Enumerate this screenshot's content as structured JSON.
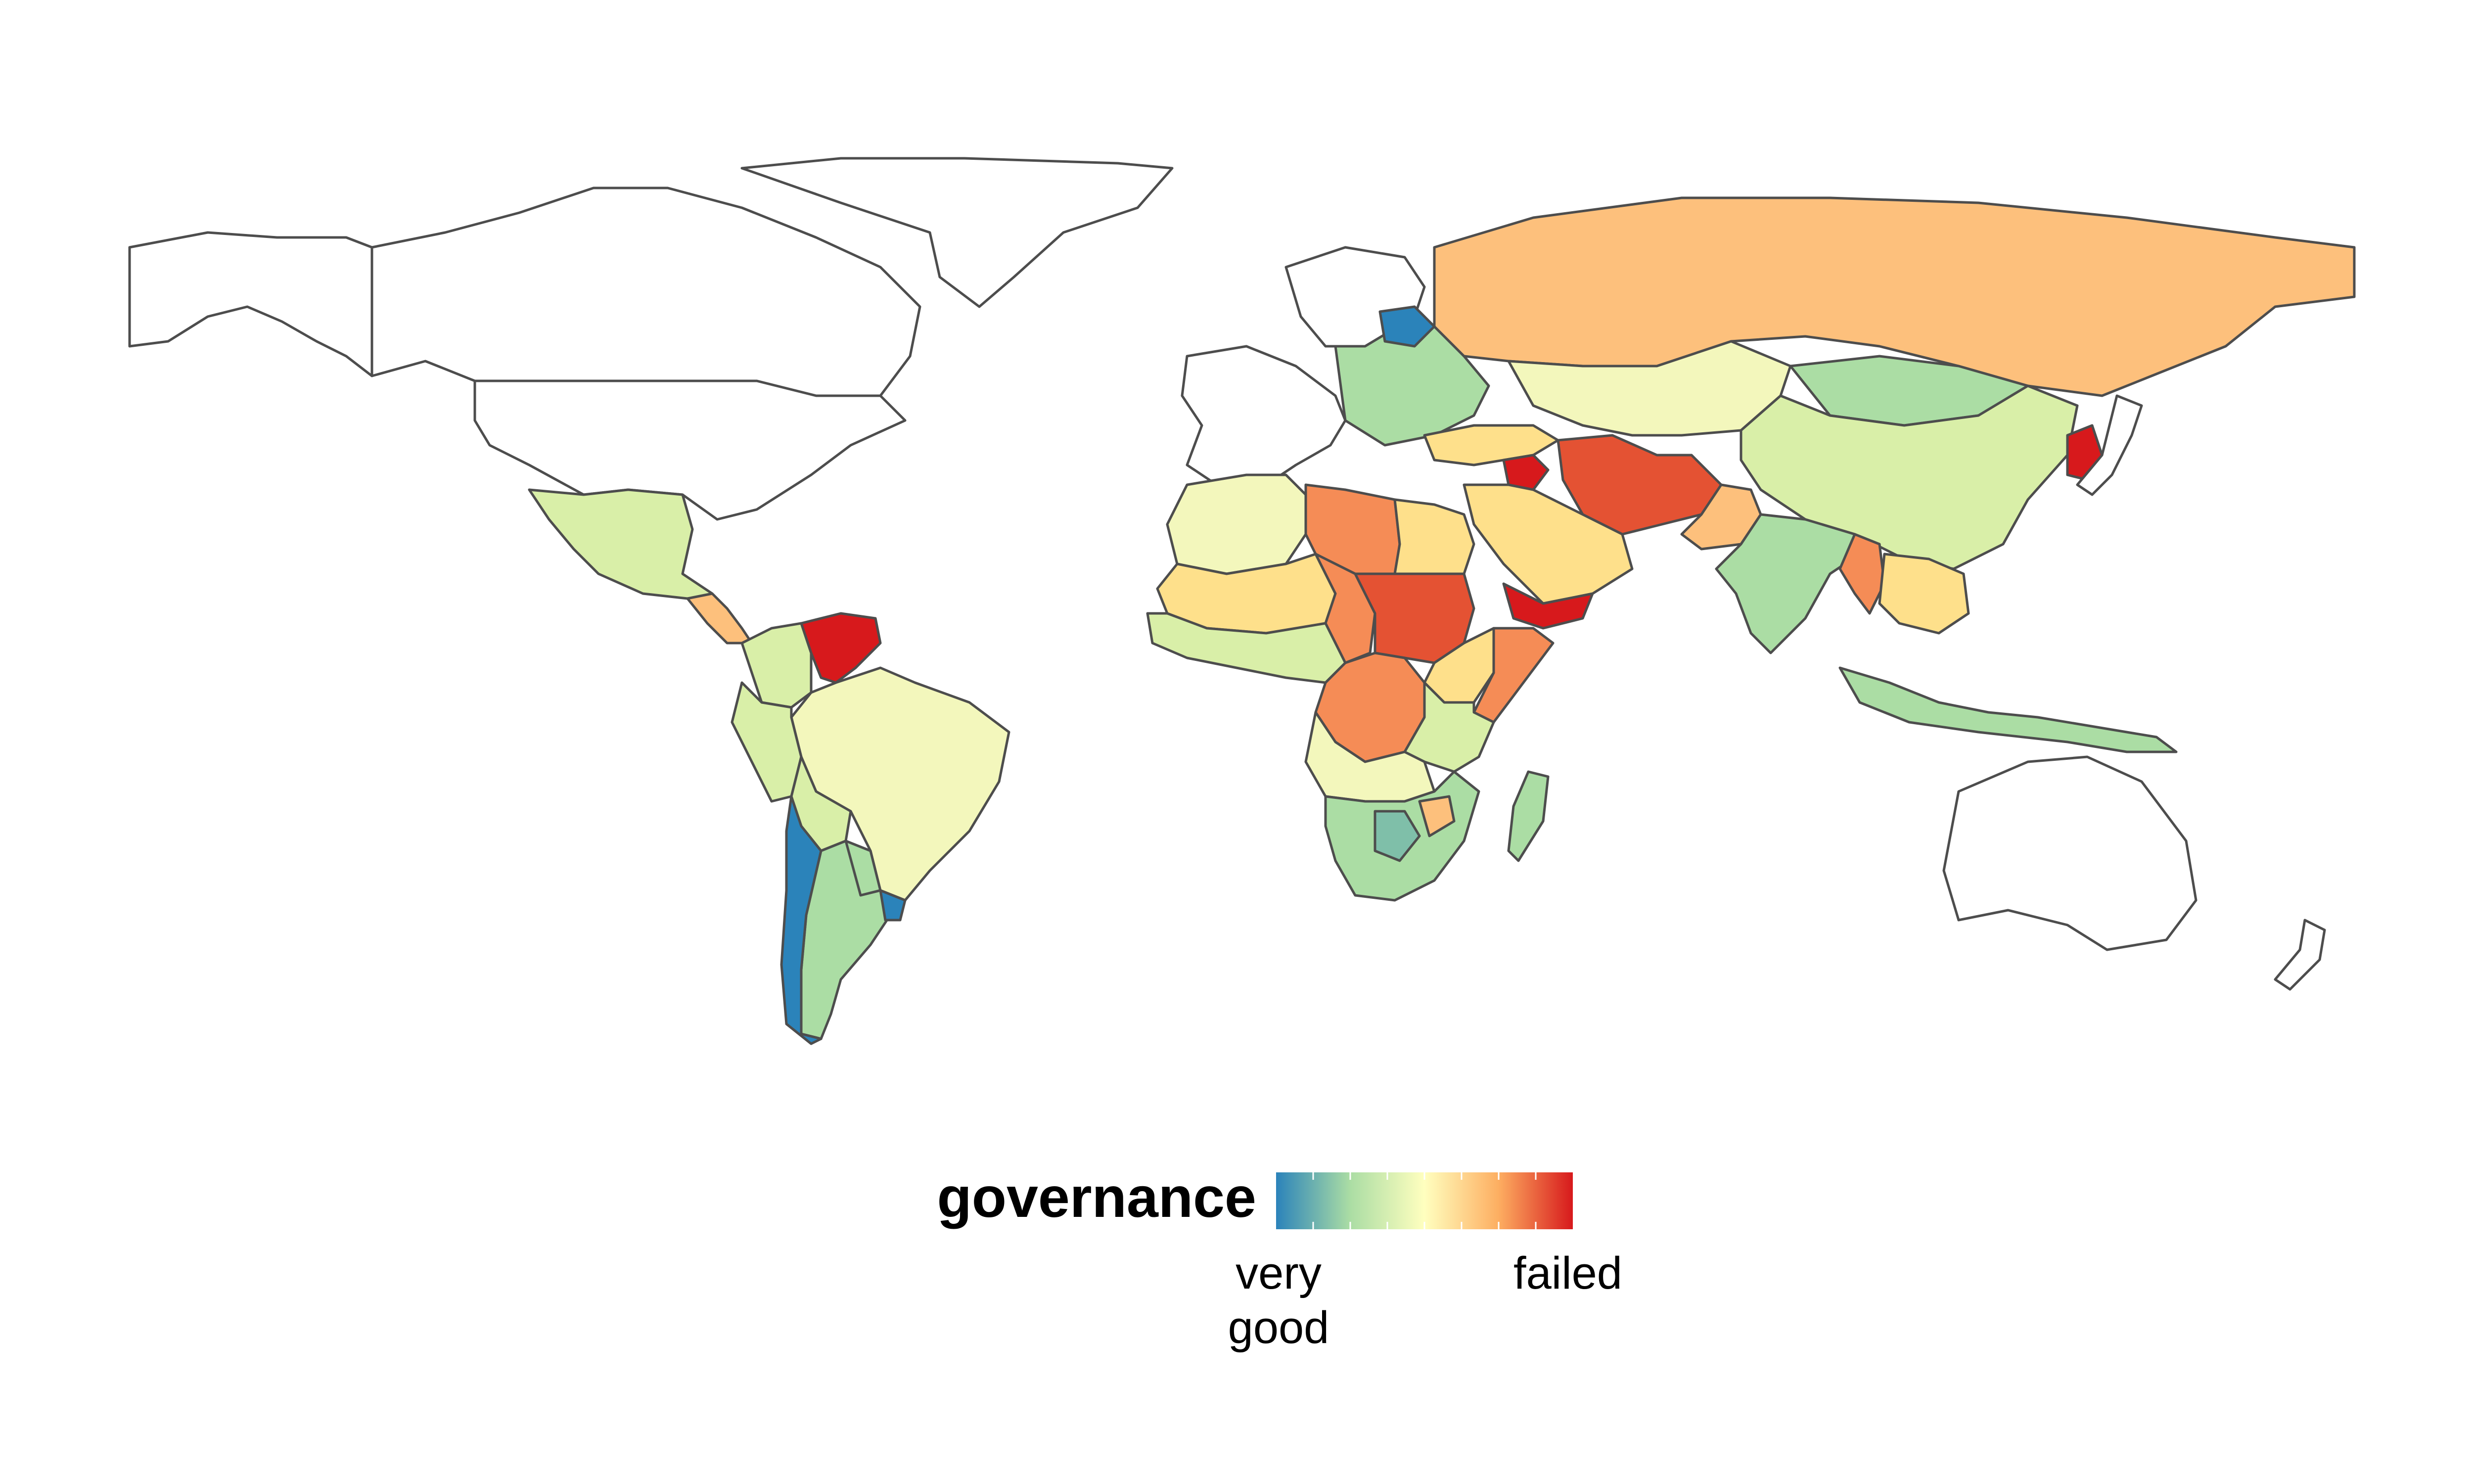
{
  "legend": {
    "title": "governance",
    "low_label_line1": "very",
    "low_label_line2": "good",
    "high_label": "failed",
    "gradient_colors": [
      "#2b83ba",
      "#abdda4",
      "#ffffbf",
      "#fdae61",
      "#d7191c"
    ]
  },
  "palette": {
    "very_good": "#2b83ba",
    "good": "#7fbfa9",
    "fair_good": "#abdda4",
    "fair": "#d9efa8",
    "neutral": "#f3f7bc",
    "weak": "#fee08b",
    "poor": "#fdc07c",
    "bad": "#f58c56",
    "very_bad": "#e45233",
    "failed": "#d7191c",
    "unrated": "#ffffff",
    "border": "#4d4d4d"
  },
  "regions": [
    {
      "name": "alaska",
      "level": "unrated"
    },
    {
      "name": "canada",
      "level": "unrated"
    },
    {
      "name": "greenland",
      "level": "unrated"
    },
    {
      "name": "united-states",
      "level": "unrated"
    },
    {
      "name": "mexico",
      "level": "fair"
    },
    {
      "name": "central-america",
      "level": "poor"
    },
    {
      "name": "colombia",
      "level": "fair"
    },
    {
      "name": "venezuela",
      "level": "failed"
    },
    {
      "name": "brazil",
      "level": "neutral"
    },
    {
      "name": "peru-ecuador",
      "level": "fair"
    },
    {
      "name": "bolivia",
      "level": "fair"
    },
    {
      "name": "paraguay",
      "level": "fair-good"
    },
    {
      "name": "argentina",
      "level": "fair-good"
    },
    {
      "name": "chile",
      "level": "very-good"
    },
    {
      "name": "uruguay",
      "level": "very-good"
    },
    {
      "name": "western-europe",
      "level": "unrated"
    },
    {
      "name": "scandinavia",
      "level": "unrated"
    },
    {
      "name": "eastern-europe",
      "level": "fair-good"
    },
    {
      "name": "baltics",
      "level": "very-good"
    },
    {
      "name": "russia",
      "level": "poor"
    },
    {
      "name": "kazakhstan",
      "level": "neutral"
    },
    {
      "name": "mongolia",
      "level": "fair-good"
    },
    {
      "name": "china",
      "level": "fair"
    },
    {
      "name": "turkey",
      "level": "weak"
    },
    {
      "name": "syria",
      "level": "failed"
    },
    {
      "name": "iran-afghanistan",
      "level": "very-bad"
    },
    {
      "name": "pakistan",
      "level": "poor"
    },
    {
      "name": "arabia",
      "level": "weak"
    },
    {
      "name": "yemen",
      "level": "failed"
    },
    {
      "name": "india",
      "level": "fair-good"
    },
    {
      "name": "myanmar",
      "level": "bad"
    },
    {
      "name": "southeast-asia",
      "level": "weak"
    },
    {
      "name": "korea",
      "level": "failed"
    },
    {
      "name": "japan",
      "level": "unrated"
    },
    {
      "name": "indonesia",
      "level": "fair-good"
    },
    {
      "name": "australia",
      "level": "unrated"
    },
    {
      "name": "new-zealand",
      "level": "unrated"
    },
    {
      "name": "north-africa-west",
      "level": "neutral"
    },
    {
      "name": "libya",
      "level": "bad"
    },
    {
      "name": "egypt",
      "level": "weak"
    },
    {
      "name": "sahel",
      "level": "weak"
    },
    {
      "name": "chad",
      "level": "bad"
    },
    {
      "name": "sudan",
      "level": "very-bad"
    },
    {
      "name": "west-africa",
      "level": "fair"
    },
    {
      "name": "horn-of-africa",
      "level": "bad"
    },
    {
      "name": "ethiopia",
      "level": "weak"
    },
    {
      "name": "drc",
      "level": "bad"
    },
    {
      "name": "east-africa",
      "level": "fair"
    },
    {
      "name": "angola-zambia",
      "level": "neutral"
    },
    {
      "name": "southern-africa",
      "level": "fair-good"
    },
    {
      "name": "botswana",
      "level": "good"
    },
    {
      "name": "zimbabwe",
      "level": "poor"
    },
    {
      "name": "madagascar",
      "level": "fair-good"
    }
  ]
}
